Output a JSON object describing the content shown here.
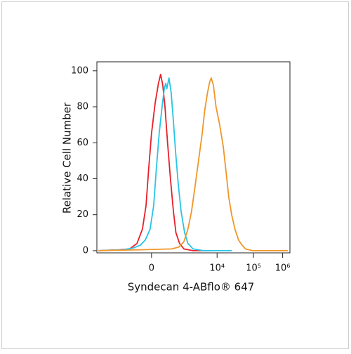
{
  "chart_data": {
    "type": "line",
    "xlabel": "Syndecan 4-ABflo® 647",
    "ylabel": "Relative Cell Number",
    "xlim": [
      -1.5,
      3.8
    ],
    "xticks": [
      {
        "value": 0,
        "label": "0"
      },
      {
        "value": 1.8,
        "label": "10⁴"
      },
      {
        "value": 2.8,
        "label": "10⁵"
      },
      {
        "value": 3.6,
        "label": "10⁶"
      }
    ],
    "ylim": [
      -1.2,
      105
    ],
    "yticks": [
      0,
      20,
      40,
      60,
      80,
      100
    ],
    "series": [
      {
        "color": "#e8202a",
        "x": [
          -1.46,
          -0.89,
          -0.6,
          -0.4,
          -0.25,
          -0.15,
          -0.08,
          0,
          0.1,
          0.19,
          0.25,
          0.31,
          0.37,
          0.44,
          0.52,
          0.6,
          0.67,
          0.77,
          0.89,
          1.14,
          1.62
        ],
        "values": [
          0,
          0.5,
          1,
          4,
          12,
          25,
          45,
          65,
          82,
          93,
          98,
          92,
          80,
          60,
          40,
          22,
          10,
          4,
          1,
          0,
          0
        ]
      },
      {
        "color": "#29c4e6",
        "x": [
          -1.46,
          -0.79,
          -0.5,
          -0.31,
          -0.17,
          -0.04,
          0.06,
          0.13,
          0.21,
          0.29,
          0.35,
          0.39,
          0.42,
          0.48,
          0.54,
          0.6,
          0.66,
          0.73,
          0.81,
          0.91,
          1.0,
          1.14,
          1.43,
          2.2
        ],
        "values": [
          0,
          0.5,
          1.5,
          3,
          6,
          12,
          25,
          45,
          65,
          80,
          90,
          93,
          90,
          96,
          88,
          72,
          55,
          38,
          22,
          10,
          4,
          1,
          0,
          0
        ]
      },
      {
        "color": "#f0962a",
        "x": [
          -1.46,
          -0.31,
          0.56,
          0.75,
          0.89,
          1.0,
          1.1,
          1.19,
          1.29,
          1.39,
          1.46,
          1.54,
          1.6,
          1.64,
          1.7,
          1.77,
          1.87,
          1.97,
          2.04,
          2.12,
          2.2,
          2.29,
          2.39,
          2.49,
          2.58,
          2.77,
          3.74
        ],
        "values": [
          0,
          0.5,
          1,
          2,
          5,
          12,
          22,
          35,
          50,
          65,
          78,
          88,
          94,
          96,
          92,
          80,
          70,
          58,
          45,
          30,
          20,
          12,
          6,
          3,
          1,
          0,
          0
        ]
      }
    ]
  }
}
